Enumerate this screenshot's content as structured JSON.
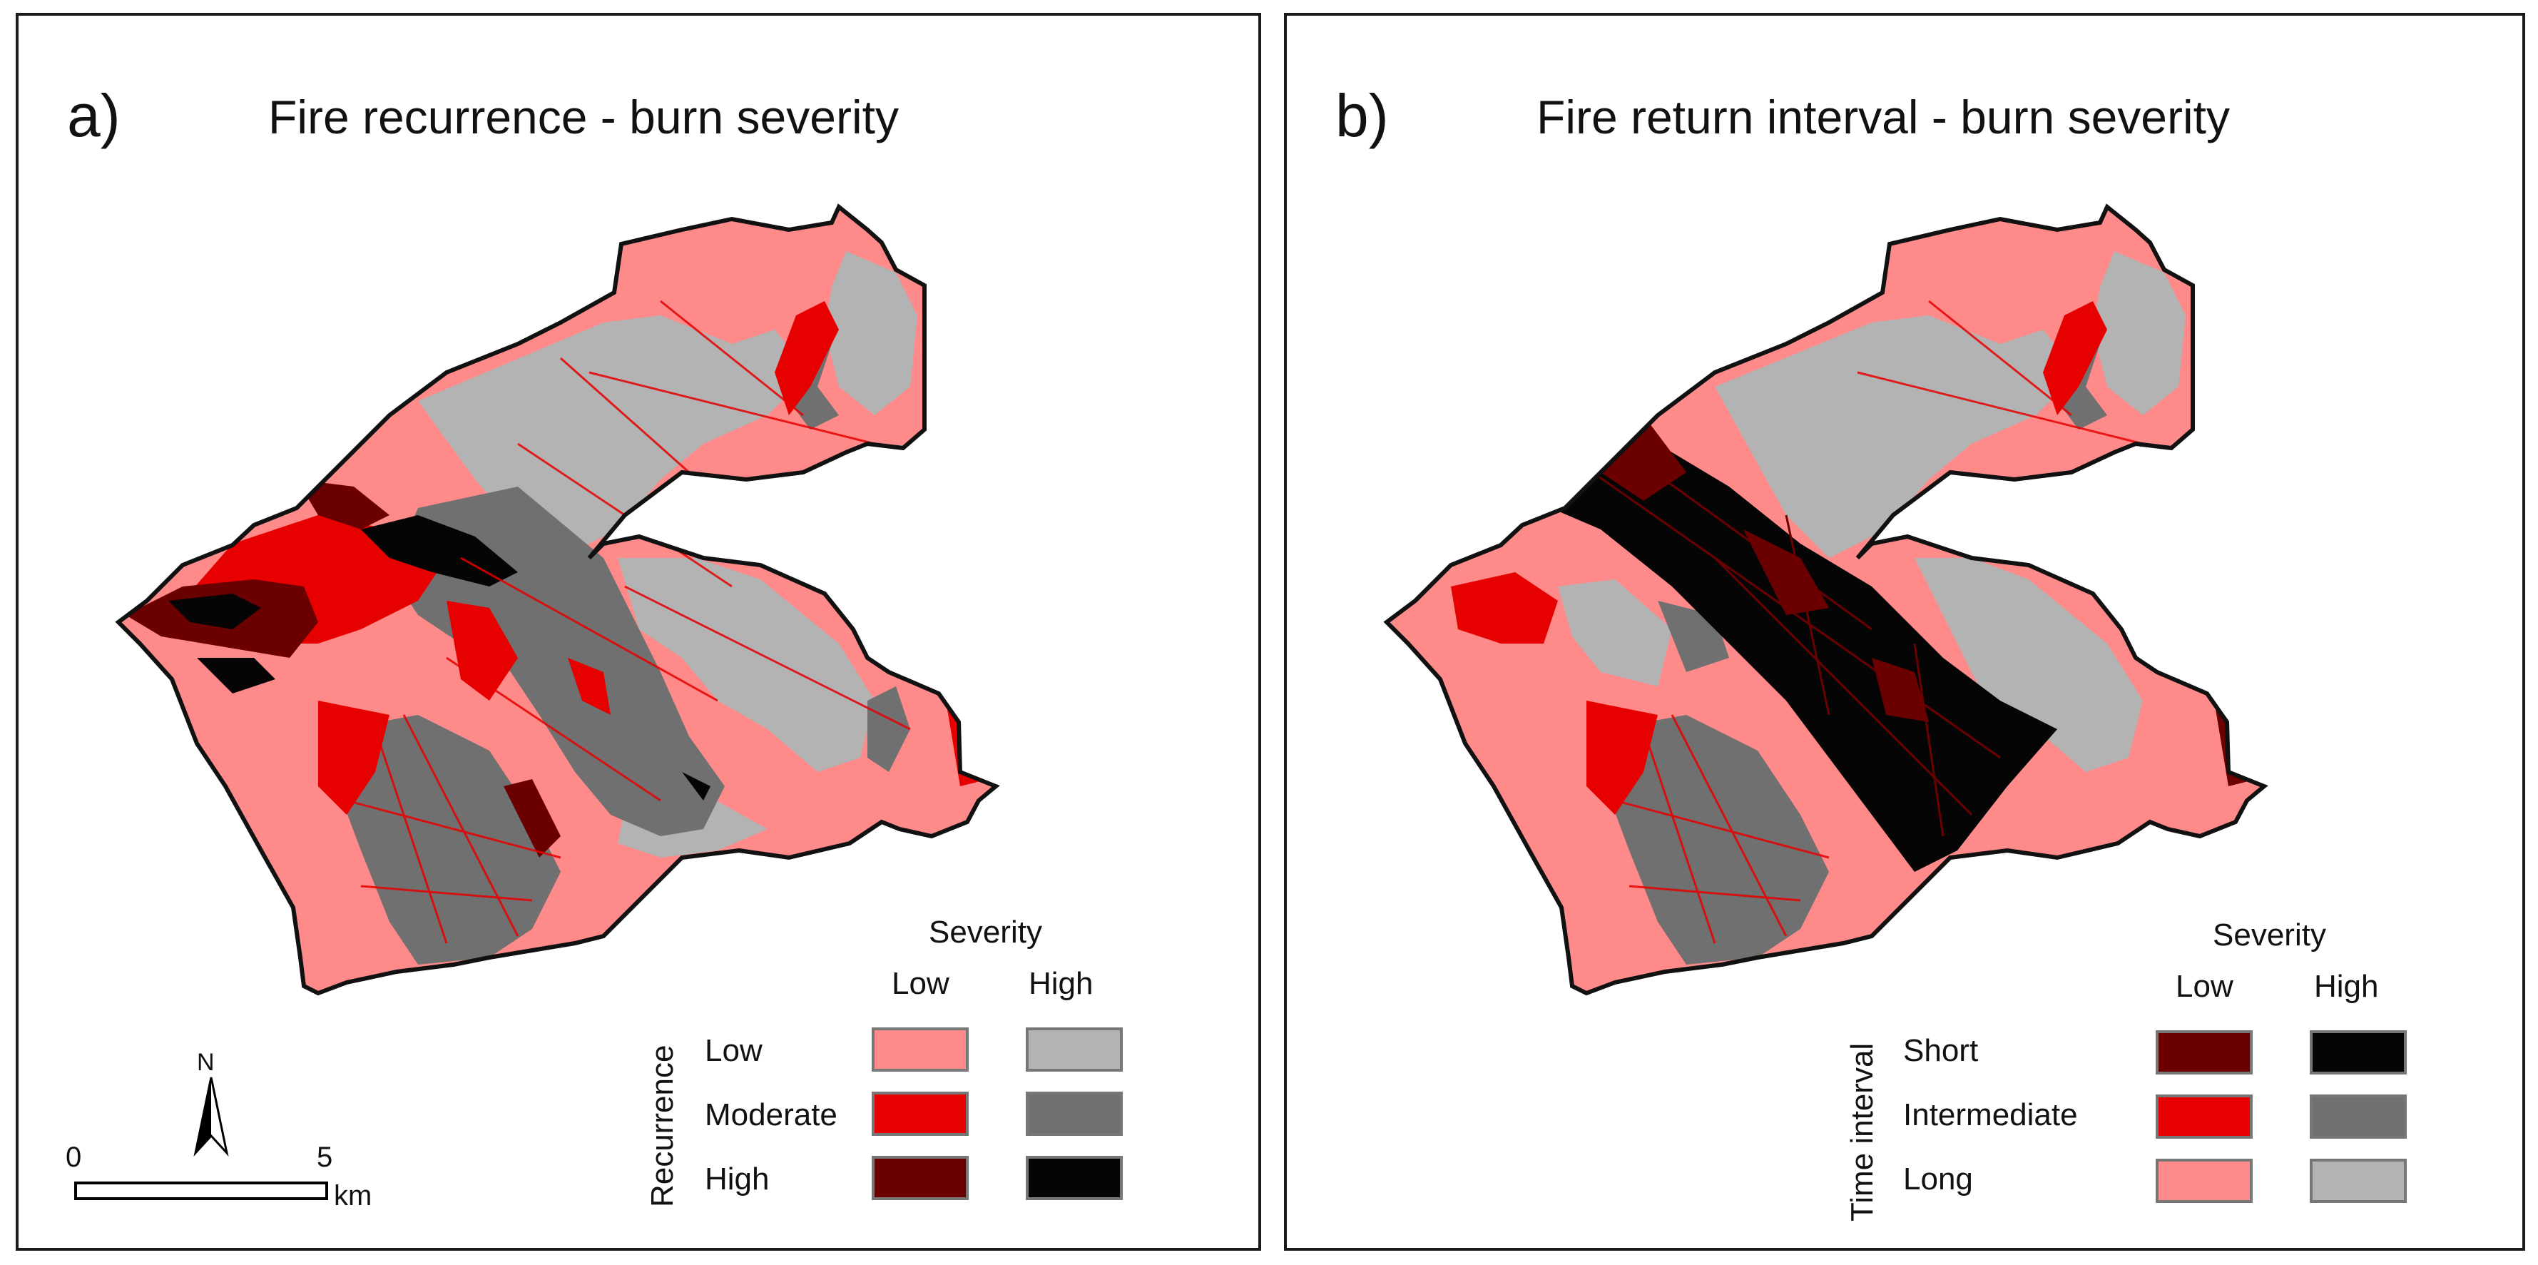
{
  "colors": {
    "low_low": "#ff8a8a",
    "low_high": "#b3b3b3",
    "mod_low": "#e60000",
    "mod_high": "#707070",
    "high_low": "#6b0000",
    "high_high": "#050505",
    "outline": "#111111"
  },
  "panel_a": {
    "letter": "a)",
    "title": "Fire recurrence - burn severity",
    "legend": {
      "severity_title": "Severity",
      "col_low": "Low",
      "col_high": "High",
      "axis_label": "Recurrence",
      "rows": [
        "Low",
        "Moderate",
        "High"
      ]
    },
    "north_label": "N",
    "scale": {
      "start": "0",
      "end": "5",
      "unit": "km"
    }
  },
  "panel_b": {
    "letter": "b)",
    "title": "Fire return interval - burn severity",
    "legend": {
      "severity_title": "Severity",
      "col_low": "Low",
      "col_high": "High",
      "axis_label": "Time interval",
      "rows": [
        "Short",
        "Intermediate",
        "Long"
      ]
    }
  }
}
